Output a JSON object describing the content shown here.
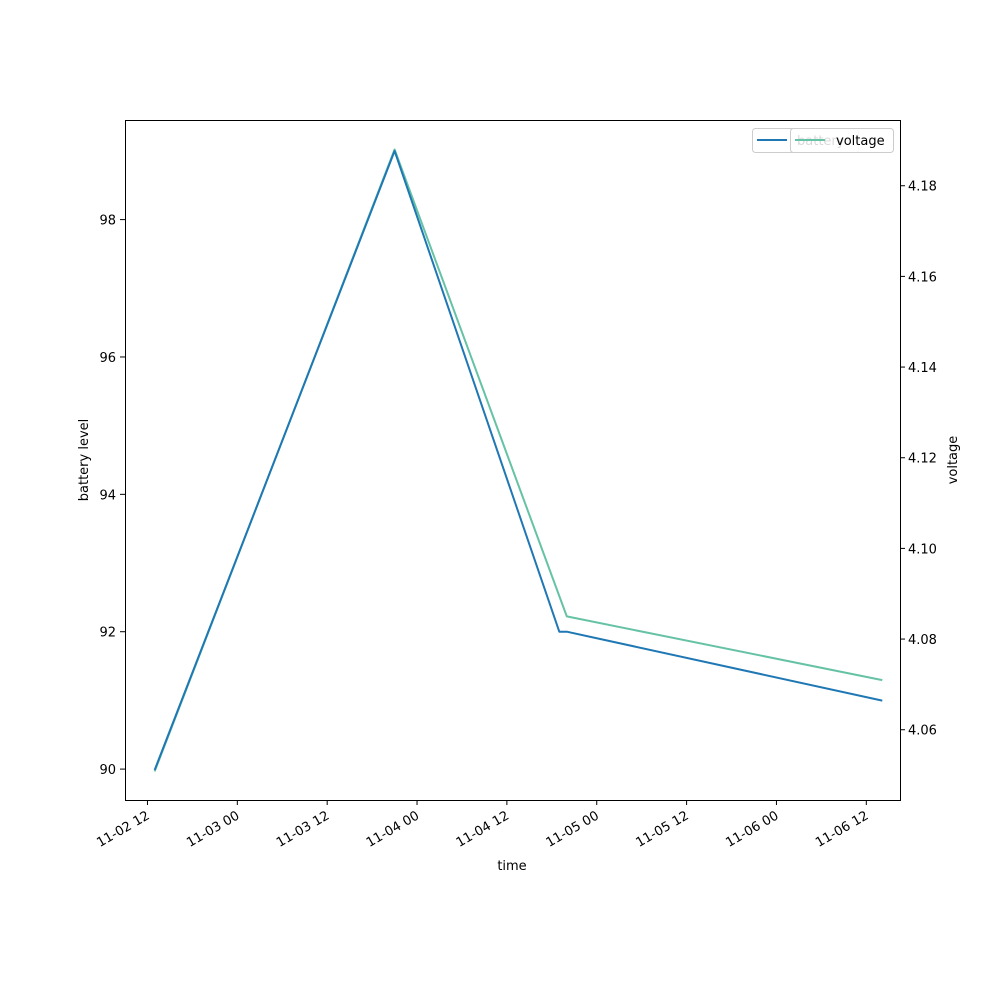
{
  "chart_data": {
    "type": "line",
    "xlabel": "time",
    "ylabel_left": "battery level",
    "ylabel_right": "voltage",
    "xlim": [
      "2022-11-02 09:00",
      "2022-11-06 16:30"
    ],
    "ylim_left": [
      89.55,
      99.45
    ],
    "ylim_right": [
      4.0445,
      4.1945
    ],
    "x_ticks": [
      {
        "t": "2022-11-02 12:00",
        "label": "11-02 12"
      },
      {
        "t": "2022-11-03 00:00",
        "label": "11-03 00"
      },
      {
        "t": "2022-11-03 12:00",
        "label": "11-03 12"
      },
      {
        "t": "2022-11-04 00:00",
        "label": "11-04 00"
      },
      {
        "t": "2022-11-04 12:00",
        "label": "11-04 12"
      },
      {
        "t": "2022-11-05 00:00",
        "label": "11-05 00"
      },
      {
        "t": "2022-11-05 12:00",
        "label": "11-05 12"
      },
      {
        "t": "2022-11-06 00:00",
        "label": "11-06 00"
      },
      {
        "t": "2022-11-06 12:00",
        "label": "11-06 12"
      }
    ],
    "y_ticks_left": [
      90,
      92,
      94,
      96,
      98
    ],
    "y_ticks_right": [
      4.06,
      4.08,
      4.1,
      4.12,
      4.14,
      4.16,
      4.18
    ],
    "grid": false,
    "legend_position": "top-right",
    "series": [
      {
        "name": "battery",
        "axis": "left",
        "color": "#1f77b4",
        "points": [
          {
            "t": "2022-11-02 13:00",
            "y": 90
          },
          {
            "t": "2022-11-03 21:00",
            "y": 99
          },
          {
            "t": "2022-11-04 19:00",
            "y": 92
          },
          {
            "t": "2022-11-04 20:00",
            "y": 92
          },
          {
            "t": "2022-11-06 14:00",
            "y": 91
          }
        ]
      },
      {
        "name": "voltage",
        "axis": "right",
        "color": "#66c2a5",
        "points": [
          {
            "t": "2022-11-02 13:00",
            "y": 4.051
          },
          {
            "t": "2022-11-03 21:00",
            "y": 4.188
          },
          {
            "t": "2022-11-04 20:00",
            "y": 4.085
          },
          {
            "t": "2022-11-06 14:00",
            "y": 4.071
          }
        ]
      }
    ]
  }
}
